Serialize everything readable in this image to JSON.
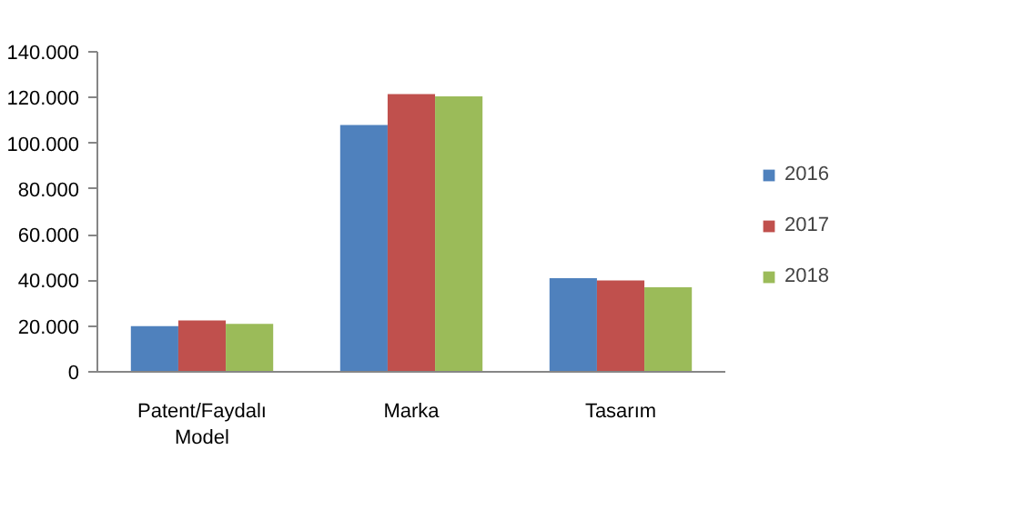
{
  "chart_data": {
    "type": "bar",
    "categories": [
      "Patent/Faydalı Model",
      "Marka",
      "Tasarım"
    ],
    "series": [
      {
        "name": "2016",
        "color": "#4f81bd",
        "values": [
          20000,
          108000,
          41000
        ]
      },
      {
        "name": "2017",
        "color": "#c0504d",
        "values": [
          22500,
          121500,
          40000
        ]
      },
      {
        "name": "2018",
        "color": "#9bbb59",
        "values": [
          21000,
          120500,
          37000
        ]
      }
    ],
    "ylim": [
      0,
      140000
    ],
    "yticks": [
      0,
      {
        "value": 20000,
        "label": "20.000"
      },
      {
        "value": 40000,
        "label": "40.000"
      },
      {
        "value": 60000,
        "label": "60.000"
      },
      {
        "value": 80000,
        "label": "80.000"
      },
      {
        "value": 100000,
        "label": "100.000"
      },
      {
        "value": 120000,
        "label": "120.000"
      },
      {
        "value": 140000,
        "label": "140.000"
      }
    ],
    "legend": "right"
  }
}
